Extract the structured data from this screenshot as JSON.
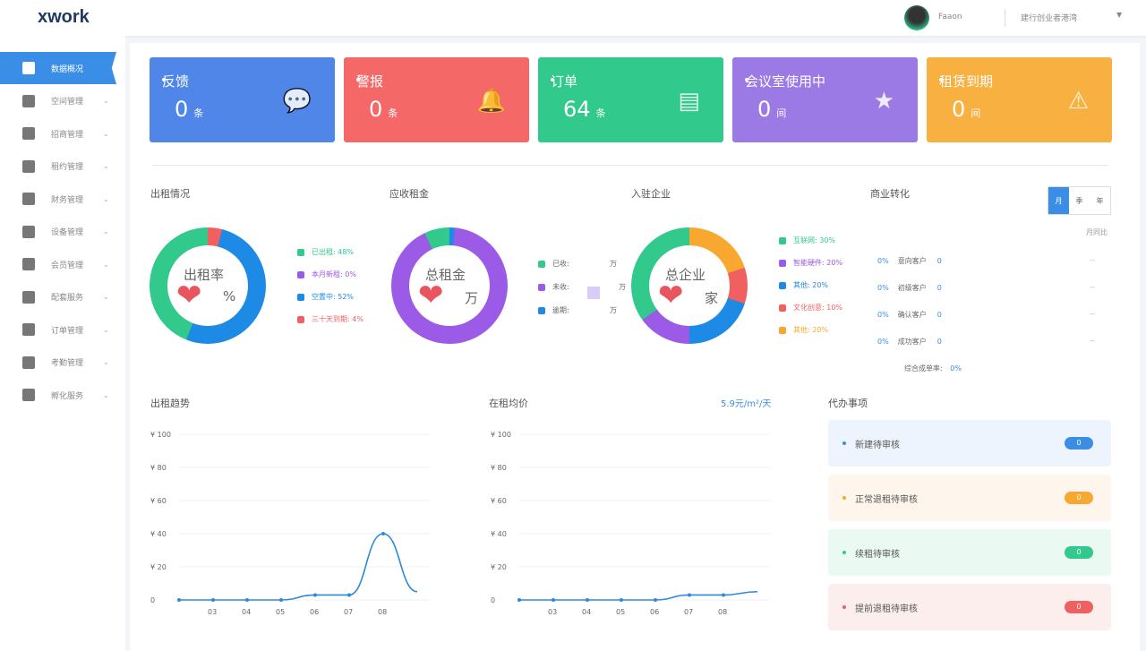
{
  "header": {
    "logo": "xwork",
    "username": "Faaon",
    "org": "建行创业者港湾"
  },
  "sidebar": [
    {
      "label": "数据概况",
      "active": true
    },
    {
      "label": "空间管理"
    },
    {
      "label": "招商管理"
    },
    {
      "label": "租约管理"
    },
    {
      "label": "财务管理"
    },
    {
      "label": "设备管理"
    },
    {
      "label": "会员管理"
    },
    {
      "label": "配套服务"
    },
    {
      "label": "订单管理"
    },
    {
      "label": "考勤管理"
    },
    {
      "label": "孵化服务"
    }
  ],
  "cards": [
    {
      "title": "反馈",
      "value": "0",
      "unit": "条",
      "color": "#4f86e8",
      "icon": "chat-icon"
    },
    {
      "title": "警报",
      "value": "0",
      "unit": "条",
      "color": "#f46868",
      "icon": "bell-icon"
    },
    {
      "title": "订单",
      "value": "64",
      "unit": "条",
      "color": "#31c98c",
      "icon": "document-icon"
    },
    {
      "title": "会议室使用中",
      "value": "0",
      "unit": "间",
      "color": "#9b7ae6",
      "icon": "star-icon"
    },
    {
      "title": "租赁到期",
      "value": "0",
      "unit": "间",
      "color": "#f8b040",
      "icon": "warning-icon"
    }
  ],
  "occupancy": {
    "title": "出租情况",
    "center": "出租率",
    "unit": "%",
    "legend": [
      {
        "label": "已出租: 48%",
        "value": 48,
        "color": "#31c98c"
      },
      {
        "label": "本月新租: 0%",
        "value": 0,
        "color": "#9b5be6"
      },
      {
        "label": "空置中: 52%",
        "value": 52,
        "color": "#1d8ae6"
      },
      {
        "label": "三十天到期: 4%",
        "value": 4,
        "color": "#f06060"
      }
    ]
  },
  "rent": {
    "title": "应收租金",
    "center": "总租金",
    "unit": "万",
    "legend": [
      {
        "label": "已收:",
        "unit": "万",
        "color": "#31c98c"
      },
      {
        "label": "未收:",
        "unit": "万",
        "color": "#9b5be6"
      },
      {
        "label": "逾期:",
        "unit": "万",
        "color": "#1d8ae6"
      }
    ]
  },
  "companies": {
    "title": "入驻企业",
    "center": "总企业",
    "unit": "家",
    "legend": [
      {
        "label": "互联网: 30%",
        "value": 30,
        "color": "#31c98c"
      },
      {
        "label": "智能硬件: 20%",
        "value": 20,
        "color": "#9b5be6"
      },
      {
        "label": "其他: 20%",
        "value": 20,
        "color": "#1d8ae6"
      },
      {
        "label": "文化创意: 10%",
        "value": 10,
        "color": "#f06060"
      },
      {
        "label": "其他: 20%",
        "value": 20,
        "color": "#f8a830"
      }
    ]
  },
  "conversion": {
    "title": "商业转化",
    "tabs": [
      "月",
      "季",
      "年"
    ],
    "compare_label": "月同比",
    "rows": [
      {
        "pct": "0%",
        "label": "意向客户",
        "count": "0",
        "change": "--"
      },
      {
        "pct": "0%",
        "label": "初级客户",
        "count": "0",
        "change": "--"
      },
      {
        "pct": "0%",
        "label": "确认客户",
        "count": "0",
        "change": "--"
      },
      {
        "pct": "0%",
        "label": "成功客户",
        "count": "0",
        "change": "--"
      }
    ],
    "total_label": "综合成单率:",
    "total": "0%"
  },
  "chart_data": [
    {
      "type": "line",
      "title": "出租趋势",
      "categories": [
        "",
        "03",
        "04",
        "05",
        "06",
        "07",
        "08",
        ""
      ],
      "values": [
        0,
        0,
        0,
        0,
        3,
        3,
        40,
        5
      ],
      "yticks": [
        "0",
        "¥ 20",
        "¥ 40",
        "¥ 60",
        "¥ 80",
        "¥ 100"
      ],
      "ylim": [
        0,
        100
      ]
    },
    {
      "type": "line",
      "title": "在租均价",
      "subtitle": "5.9元/m²/天",
      "categories": [
        "",
        "03",
        "04",
        "05",
        "06",
        "07",
        "08",
        ""
      ],
      "values": [
        0,
        0,
        0,
        0,
        0,
        3,
        3,
        5
      ],
      "yticks": [
        "0",
        "¥ 20",
        "¥ 40",
        "¥ 60",
        "¥ 80",
        "¥ 100"
      ],
      "ylim": [
        0,
        100
      ]
    }
  ],
  "todos": {
    "title": "代办事项",
    "items": [
      {
        "label": "新建待审核",
        "count": "0",
        "bg": "#eef4fe",
        "color": "#3a8ee6"
      },
      {
        "label": "正常退租待审核",
        "count": "0",
        "bg": "#fef6ec",
        "color": "#f8a830"
      },
      {
        "label": "续租待审核",
        "count": "0",
        "bg": "#eafaf3",
        "color": "#31c98c"
      },
      {
        "label": "提前退租待审核",
        "count": "0",
        "bg": "#fdeeee",
        "color": "#f06060"
      }
    ]
  }
}
